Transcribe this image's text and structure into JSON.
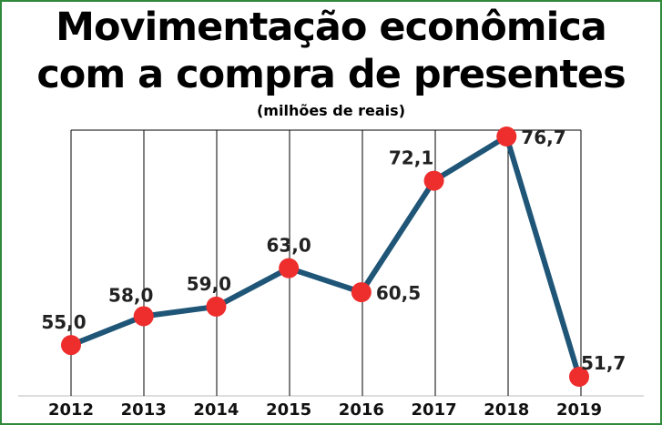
{
  "title_line1": "Movimentação econômica",
  "title_line2": "com a compra de presentes",
  "subtitle": "(milhões de reais)",
  "colors": {
    "line": "#1f5577",
    "marker": "#ee2d2d",
    "grid": "#000000",
    "frame": "#2f8a3c"
  },
  "chart_data": {
    "type": "line",
    "categories": [
      "2012",
      "2013",
      "2014",
      "2015",
      "2016",
      "2017",
      "2018",
      "2019"
    ],
    "values": [
      55.0,
      58.0,
      59.0,
      63.0,
      60.5,
      72.1,
      76.7,
      51.7
    ],
    "data_labels": [
      "55,0",
      "58,0",
      "59,0",
      "63,0",
      "60,5",
      "72,1",
      "76,7",
      "51,7"
    ],
    "title": "Movimentação econômica com a compra de presentes",
    "subtitle": "(milhões de reais)",
    "xlabel": "",
    "ylabel": "",
    "grid": "vertical",
    "legend": "none"
  }
}
